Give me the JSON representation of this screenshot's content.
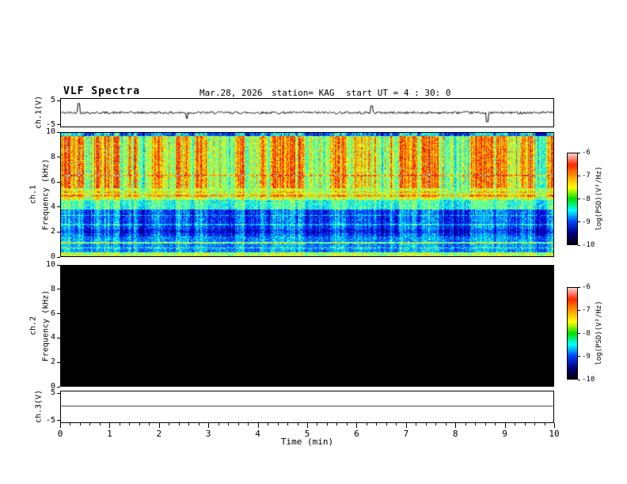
{
  "title": "VLF Spectra",
  "header": {
    "date": "Mar.28, 2026",
    "station": "station= KAG",
    "start_ut": "start UT =  4 : 30: 0"
  },
  "axes": {
    "time_label": "Time (min)",
    "time_ticks": [
      0,
      1,
      2,
      3,
      4,
      5,
      6,
      7,
      8,
      9,
      10
    ],
    "volt_ticks": [
      5,
      -5
    ],
    "volt_range": [
      -6,
      6
    ],
    "freq_ticks": [
      10,
      8,
      6,
      4,
      2,
      0
    ],
    "freq_range": [
      0,
      10
    ],
    "labels": {
      "ch1v": "ch.1(V)",
      "ch1": "ch.1",
      "freq": "Frequency (kHz)",
      "ch2": "ch.2",
      "ch3v": "ch.3(V)"
    }
  },
  "colorbar": {
    "label": "log(PSD)(V²/Hz)",
    "ticks": [
      -6,
      -7,
      -8,
      -9,
      -10
    ],
    "gradient": [
      "#ffd2d2",
      "#ff2a00",
      "#ff9900",
      "#ffff00",
      "#00e000",
      "#00ffff",
      "#0044ff",
      "#000080",
      "#000010"
    ]
  },
  "chart_data": [
    {
      "type": "line",
      "panel": "ch1_voltage",
      "x_range_min": [
        0,
        10
      ],
      "y_range_V": [
        -6,
        6
      ],
      "tick_values_V": [
        5,
        -5
      ],
      "baseline_V": 0,
      "noise_amp_V": 0.55,
      "seed": 42,
      "spikes": [
        {
          "t_min": 0.35,
          "amp_V": 4
        },
        {
          "t_min": 2.55,
          "amp_V": -2.5
        },
        {
          "t_min": 6.3,
          "amp_V": 3
        },
        {
          "t_min": 8.65,
          "amp_V": -4
        }
      ],
      "description": "Broadband noisy voltage trace centered near 0 V with sporadic impulses"
    },
    {
      "type": "heatmap",
      "panel": "ch1_spectrogram",
      "x_range_min": [
        0,
        10
      ],
      "y_range_kHz": [
        0,
        10
      ],
      "z_label": "log(PSD)(V²/Hz)",
      "z_range": [
        -10,
        -6
      ],
      "value_scale": "band values 0-1 map linearly to log PSD -10..-6 through a jet colormap",
      "seed": 12345,
      "noise": 0.26,
      "bands": [
        {
          "f": [
            9.78,
            10
          ],
          "base": 0.25,
          "streak": 0.25
        },
        {
          "f": [
            5.5,
            9.78
          ],
          "base": 0.62,
          "streak": 0.3
        },
        {
          "f": [
            4.55,
            5.5
          ],
          "base": 0.55,
          "streak": 0.12
        },
        {
          "f": [
            3.75,
            4.55
          ],
          "base": 0.42,
          "streak": 0.12
        },
        {
          "f": [
            1.55,
            3.75
          ],
          "base": 0.2,
          "streak": 0.18
        },
        {
          "f": [
            0.3,
            1.55
          ],
          "base": 0.27,
          "streak": 0.12
        },
        {
          "f": [
            0,
            0.3
          ],
          "base": 0.55,
          "streak": 0.06
        }
      ],
      "lines": [
        {
          "f": 6.55,
          "hw": 0.07,
          "add": 0.14
        },
        {
          "f": 4.9,
          "hw": 0.1,
          "add": 0.15
        },
        {
          "f": 5.2,
          "hw": 0.05,
          "add": 0.1
        },
        {
          "f": 3.3,
          "hw": 0.05,
          "add": 0.14
        },
        {
          "f": 2.55,
          "hw": 0.05,
          "add": 0.14
        },
        {
          "f": 2.0,
          "hw": 0.18,
          "add": -0.07
        },
        {
          "f": 1.05,
          "hw": 0.07,
          "add": 0.26
        },
        {
          "f": 0.65,
          "hw": 0.05,
          "add": 0.2
        }
      ],
      "description": "Dense red/yellow VLF activity 5.5-10 kHz with vertical striations, green-yellow band 4.5-5.5 kHz, mostly dark blue below 4 kHz with cyan horizontal lines near 1 kHz and a green line along the bottom edge"
    },
    {
      "type": "heatmap",
      "panel": "ch2_spectrogram",
      "x_range_min": [
        0,
        10
      ],
      "y_range_kHz": [
        0,
        10
      ],
      "z_range": [
        -10,
        -6
      ],
      "no_data": true,
      "fill": "#000000",
      "description": "No signal - uniformly black panel"
    },
    {
      "type": "line",
      "panel": "ch3_voltage",
      "x_range_min": [
        0,
        10
      ],
      "y_range_V": [
        -6,
        6
      ],
      "tick_values_V": [
        5,
        -5
      ],
      "flat_value_V": 0.3,
      "seed": 7,
      "description": "Flat line slightly above 0 V"
    }
  ]
}
